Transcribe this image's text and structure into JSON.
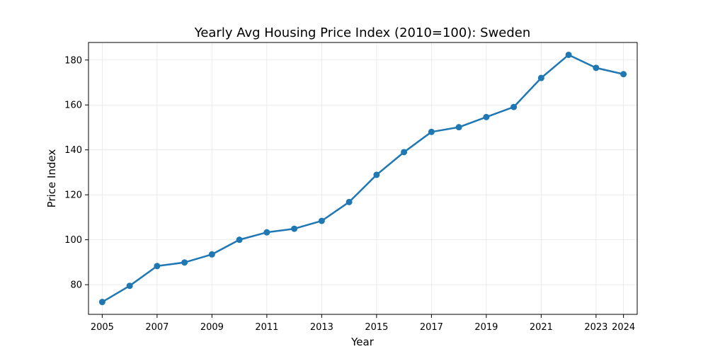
{
  "chart_data": {
    "type": "line",
    "title": "Yearly Avg Housing Price Index (2010=100): Sweden",
    "xlabel": "Year",
    "ylabel": "Price Index",
    "x": [
      2005,
      2006,
      2007,
      2008,
      2009,
      2010,
      2011,
      2012,
      2013,
      2014,
      2015,
      2016,
      2017,
      2018,
      2019,
      2020,
      2021,
      2022,
      2023,
      2024
    ],
    "series": [
      {
        "values": [
          72.3,
          79.5,
          88.3,
          89.9,
          93.5,
          100.0,
          103.3,
          104.9,
          108.4,
          116.8,
          128.9,
          139.0,
          148.0,
          150.1,
          154.6,
          159.1,
          172.0,
          182.3,
          176.5,
          173.7
        ],
        "color": "#1f77b4"
      }
    ],
    "xticks": [
      "2005",
      "2007",
      "2009",
      "2011",
      "2013",
      "2015",
      "2017",
      "2019",
      "2021",
      "2023",
      "2024"
    ],
    "yticks": [
      "80",
      "100",
      "120",
      "140",
      "160",
      "180"
    ],
    "xlim": [
      2004.5,
      2024.5
    ],
    "ylim": [
      66.8,
      187.8
    ],
    "grid": true,
    "marker": "circle"
  }
}
